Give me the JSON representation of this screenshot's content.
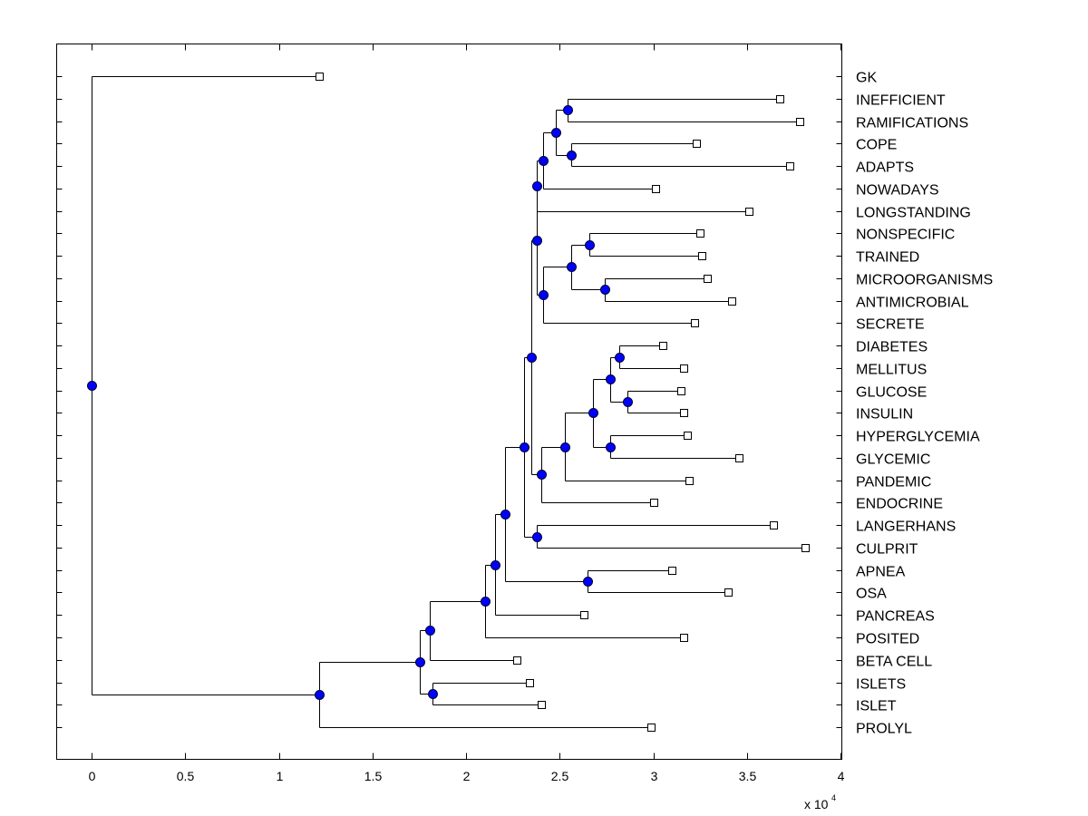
{
  "chart_data": {
    "type": "dendrogram",
    "title": "",
    "xlabel": "",
    "ylabel": "",
    "x_multiplier": {
      "base": "x 10",
      "exponent": "4"
    },
    "xlim": [
      -0.19,
      4.005
    ],
    "xticks": [
      0,
      0.5,
      1,
      1.5,
      2,
      2.5,
      3,
      3.5,
      4
    ],
    "xtick_labels": [
      "0",
      "0.5",
      "1",
      "1.5",
      "2",
      "2.5",
      "3",
      "3.5",
      "4"
    ],
    "grid": false,
    "leaves": [
      {
        "label": "GK",
        "x": 1.215
      },
      {
        "label": "INEFFICIENT",
        "x": 3.675
      },
      {
        "label": "RAMIFICATIONS",
        "x": 3.78
      },
      {
        "label": "COPE",
        "x": 3.23
      },
      {
        "label": "ADAPTS",
        "x": 3.73
      },
      {
        "label": "NOWADAYS",
        "x": 3.01
      },
      {
        "label": "LONGSTANDING",
        "x": 3.51
      },
      {
        "label": "NONSPECIFIC",
        "x": 3.25
      },
      {
        "label": "TRAINED",
        "x": 3.26
      },
      {
        "label": "MICROORGANISMS",
        "x": 3.29
      },
      {
        "label": "ANTIMICROBIAL",
        "x": 3.42
      },
      {
        "label": "SECRETE",
        "x": 3.22
      },
      {
        "label": "DIABETES",
        "x": 3.05
      },
      {
        "label": "MELLITUS",
        "x": 3.16
      },
      {
        "label": "GLUCOSE",
        "x": 3.15
      },
      {
        "label": "INSULIN",
        "x": 3.16
      },
      {
        "label": "HYPERGLYCEMIA",
        "x": 3.18
      },
      {
        "label": "GLYCEMIC",
        "x": 3.46
      },
      {
        "label": "PANDEMIC",
        "x": 3.19
      },
      {
        "label": "ENDOCRINE",
        "x": 3.0
      },
      {
        "label": "LANGERHANS",
        "x": 3.64
      },
      {
        "label": "CULPRIT",
        "x": 3.81
      },
      {
        "label": "APNEA",
        "x": 3.1
      },
      {
        "label": "OSA",
        "x": 3.4
      },
      {
        "label": "PANCREAS",
        "x": 2.63
      },
      {
        "label": "POSITED",
        "x": 3.16
      },
      {
        "label": "BETA CELL",
        "x": 2.27
      },
      {
        "label": "ISLETS",
        "x": 2.34
      },
      {
        "label": "ISLET",
        "x": 2.4
      },
      {
        "label": "PROLYL",
        "x": 2.99
      }
    ],
    "nodes": [
      {
        "x": 2.54,
        "children": [
          1,
          2
        ]
      },
      {
        "x": 2.56,
        "children": [
          3,
          4
        ]
      },
      {
        "x": 2.48,
        "children": [
          "N0",
          "N1"
        ]
      },
      {
        "x": 2.41,
        "children": [
          "N2",
          5
        ]
      },
      {
        "x": 2.38,
        "children": [
          "N3",
          6
        ]
      },
      {
        "x": 2.66,
        "children": [
          7,
          8
        ]
      },
      {
        "x": 2.74,
        "children": [
          9,
          10
        ]
      },
      {
        "x": 2.56,
        "children": [
          "N5",
          "N6"
        ]
      },
      {
        "x": 2.41,
        "children": [
          "N7",
          11
        ]
      },
      {
        "x": 2.38,
        "children": [
          "N4",
          "N8"
        ]
      },
      {
        "x": 2.82,
        "children": [
          12,
          13
        ]
      },
      {
        "x": 2.86,
        "children": [
          14,
          15
        ]
      },
      {
        "x": 2.77,
        "children": [
          "N10",
          "N11"
        ]
      },
      {
        "x": 2.77,
        "children": [
          16,
          17
        ]
      },
      {
        "x": 2.68,
        "children": [
          "N12",
          "N13"
        ]
      },
      {
        "x": 2.53,
        "children": [
          "N14",
          18
        ]
      },
      {
        "x": 2.4,
        "children": [
          "N15",
          19
        ]
      },
      {
        "x": 2.35,
        "children": [
          "N9",
          "N16"
        ]
      },
      {
        "x": 2.38,
        "children": [
          20,
          21
        ]
      },
      {
        "x": 2.31,
        "children": [
          "N17",
          "N18"
        ]
      },
      {
        "x": 2.65,
        "children": [
          22,
          23
        ]
      },
      {
        "x": 2.21,
        "children": [
          "N19",
          "N20"
        ]
      },
      {
        "x": 2.155,
        "children": [
          "N21",
          24
        ]
      },
      {
        "x": 2.1,
        "children": [
          "N22",
          25
        ]
      },
      {
        "x": 1.805,
        "children": [
          "N23",
          26
        ]
      },
      {
        "x": 1.82,
        "children": [
          27,
          28
        ]
      },
      {
        "x": 1.755,
        "children": [
          "N24",
          "N25"
        ]
      },
      {
        "x": 1.215,
        "children": [
          "N26",
          29
        ]
      },
      {
        "x": 0,
        "children": [
          0,
          "N27"
        ]
      }
    ],
    "colors": {
      "node": "#0000ff",
      "line": "#000000",
      "leaf_fill": "#ffffff"
    }
  }
}
